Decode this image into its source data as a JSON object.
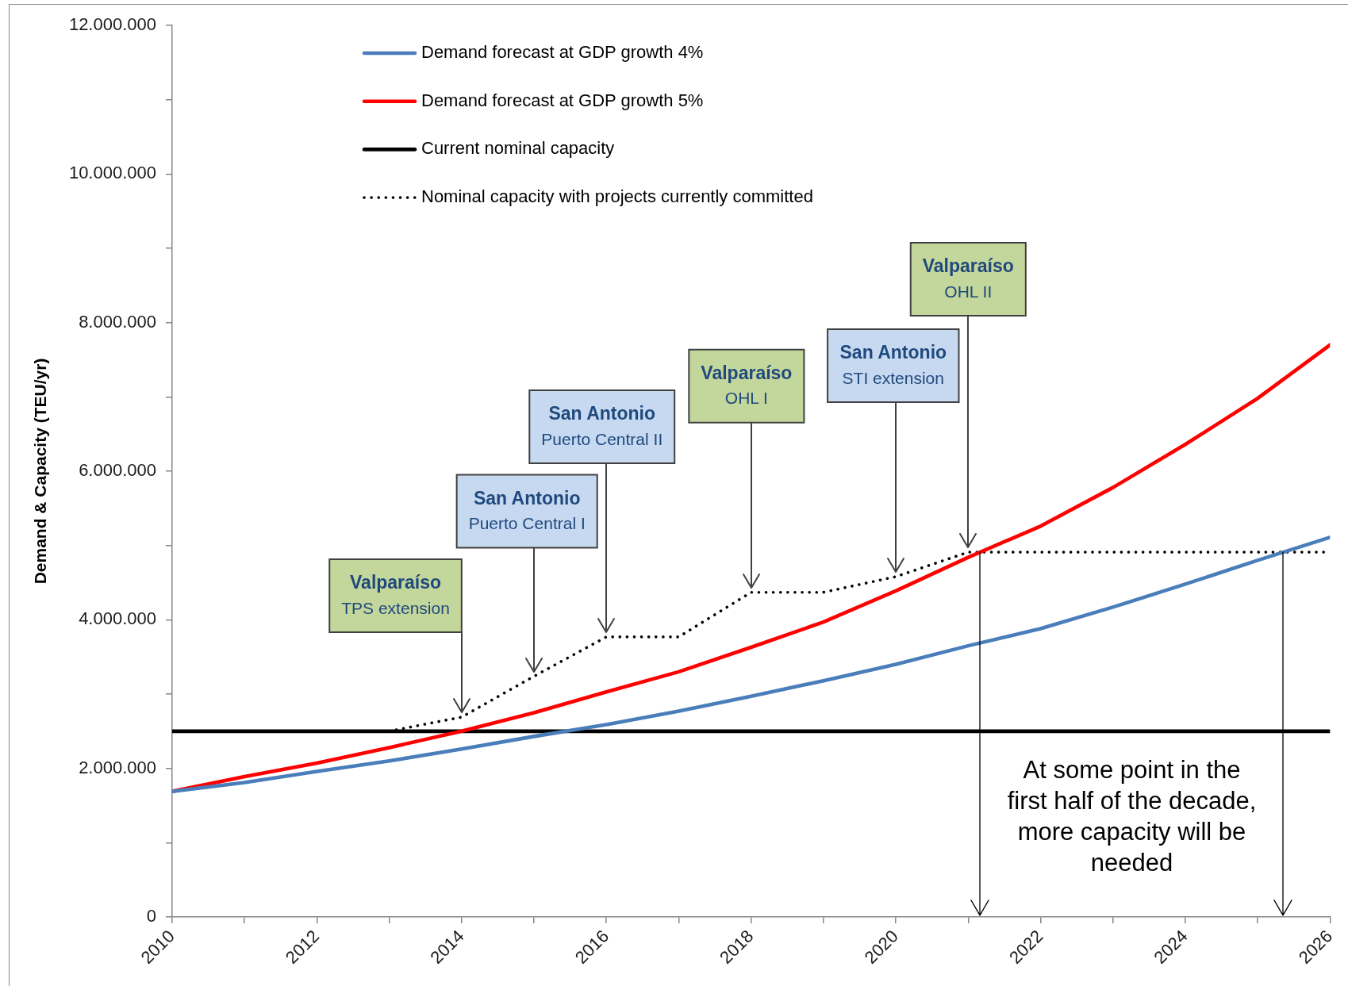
{
  "chart_data": {
    "type": "line",
    "ylabel": "Demand & Capacity (TEU/yr)",
    "x": [
      2010,
      2011,
      2012,
      2013,
      2014,
      2015,
      2016,
      2017,
      2018,
      2019,
      2020,
      2021,
      2022,
      2023,
      2024,
      2025,
      2026
    ],
    "xlim": [
      2010,
      2026
    ],
    "xticks": [
      2010,
      {
        "value": 2011,
        "label": null
      },
      2012,
      {
        "value": 2013,
        "label": null
      },
      2014,
      {
        "value": 2015,
        "label": null
      },
      2016,
      {
        "value": 2017,
        "label": null
      },
      2018,
      {
        "value": 2019,
        "label": null
      },
      2020,
      {
        "value": 2021,
        "label": null
      },
      2022,
      {
        "value": 2023,
        "label": null
      },
      2024,
      {
        "value": 2025,
        "label": null
      },
      2026
    ],
    "ylim": [
      0,
      12000000
    ],
    "yticks": [
      0,
      {
        "value": 1000000,
        "label": null
      },
      {
        "value": 2000000,
        "label": "2.000.000"
      },
      {
        "value": 3000000,
        "label": null
      },
      {
        "value": 4000000,
        "label": "4.000.000"
      },
      {
        "value": 5000000,
        "label": null
      },
      {
        "value": 6000000,
        "label": "6.000.000"
      },
      {
        "value": 7000000,
        "label": null
      },
      {
        "value": 8000000,
        "label": "8.000.000"
      },
      {
        "value": 9000000,
        "label": null
      },
      {
        "value": 10000000,
        "label": "10.000.000"
      },
      {
        "value": 11000000,
        "label": null
      },
      {
        "value": 12000000,
        "label": "12.000.000"
      }
    ],
    "series": [
      {
        "name": "Demand forecast at GDP growth 4%",
        "color": "#4a7ebb",
        "values": [
          1690000,
          1810000,
          1960000,
          2100000,
          2260000,
          2430000,
          2590000,
          2770000,
          2970000,
          3180000,
          3400000,
          3650000,
          3880000,
          4170000,
          4480000,
          4800000,
          5110000
        ]
      },
      {
        "name": "Demand forecast at GDP growth 5%",
        "color": "#ff0000",
        "values": [
          1690000,
          1890000,
          2070000,
          2280000,
          2500000,
          2750000,
          3030000,
          3300000,
          3630000,
          3970000,
          4390000,
          4840000,
          5260000,
          5780000,
          6360000,
          6980000,
          7700000
        ]
      },
      {
        "name": "Current nominal capacity",
        "color": "#000000",
        "values": [
          2500000,
          2500000,
          2500000,
          2500000,
          2500000,
          2500000,
          2500000,
          2500000,
          2500000,
          2500000,
          2500000,
          2500000,
          2500000,
          2500000,
          2500000,
          2500000,
          2500000
        ]
      },
      {
        "name": "Nominal capacity with projects currently committed",
        "color": "#000000",
        "line_style": "dotted",
        "values": [
          null,
          null,
          null,
          2500000,
          2690000,
          3240000,
          3770000,
          3770000,
          4370000,
          4370000,
          4580000,
          4910000,
          4910000,
          4910000,
          4910000,
          4910000,
          4910000
        ]
      }
    ],
    "annotations": [
      {
        "text": "Valparaíso\nTPS extension",
        "x": 2014,
        "y": 2690000
      },
      {
        "text": "San Antonio\nPuerto Central I",
        "x": 2015,
        "y": 3240000
      },
      {
        "text": "San Antonio\nPuerto Central II",
        "x": 2016,
        "y": 3770000
      },
      {
        "text": "Valparaíso\nOHL I",
        "x": 2018,
        "y": 4370000
      },
      {
        "text": "San Antonio\nSTI extension",
        "x": 2020,
        "y": 4580000
      },
      {
        "text": "Valparaíso\nOHL II",
        "x": 2021,
        "y": 4910000
      },
      "At some point in the first half of the decade, more capacity will be needed"
    ],
    "legend": "top left",
    "marker": "none",
    "grid": false
  }
}
